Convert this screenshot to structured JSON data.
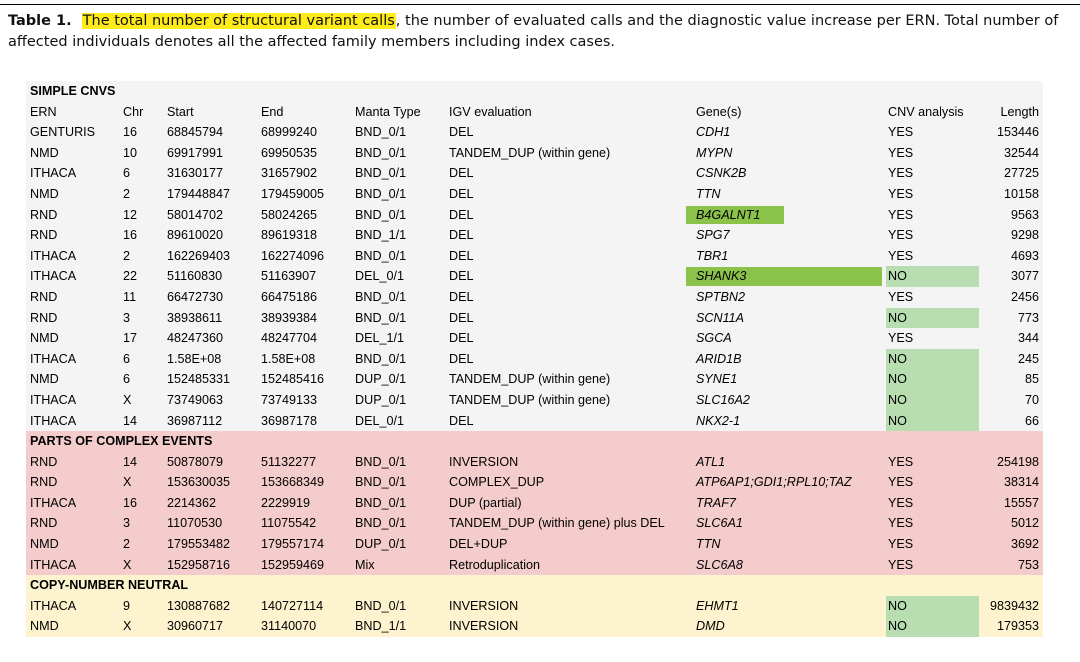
{
  "caption": {
    "label": "Table 1.",
    "highlighted": "The total number of structural variant calls",
    "rest": ", the number of evaluated calls and the diagnostic value increase per ERN. Total number of affected individuals denotes all the affected family members including index cases."
  },
  "colors": {
    "caption_highlight": "#ffeb1a",
    "simple_bg": "#f4f4f4",
    "complex_bg": "#f5cccc",
    "neutral_bg": "#fdf3cf",
    "gene_highlight_strong": "#8bc34a",
    "cnv_highlight_light": "#b7ddb0"
  },
  "table": {
    "sections": [
      {
        "title": "SIMPLE CNVS",
        "header": {
          "ern": "ERN",
          "chr": "Chr",
          "start": "Start",
          "end": "End",
          "manta": "Manta Type",
          "igv": "IGV evaluation",
          "gene": "Gene(s)",
          "cnv": "CNV analysis",
          "len": "Length"
        },
        "rows": [
          {
            "ern": "GENTURIS",
            "chr": "16",
            "start": "68845794",
            "end": "68999240",
            "manta": "BND_0/1",
            "igv": "DEL",
            "gene": "CDH1",
            "cnv": "YES",
            "len": "153446"
          },
          {
            "ern": "NMD",
            "chr": "10",
            "start": "69917991",
            "end": "69950535",
            "manta": "BND_0/1",
            "igv": "TANDEM_DUP (within gene)",
            "gene": "MYPN",
            "cnv": "YES",
            "len": "32544"
          },
          {
            "ern": "ITHACA",
            "chr": "6",
            "start": "31630177",
            "end": "31657902",
            "manta": "BND_0/1",
            "igv": "DEL",
            "gene": "CSNK2B",
            "cnv": "YES",
            "len": "27725"
          },
          {
            "ern": "NMD",
            "chr": "2",
            "start": "179448847",
            "end": "179459005",
            "manta": "BND_0/1",
            "igv": "DEL",
            "gene": "TTN",
            "cnv": "YES",
            "len": "10158"
          },
          {
            "ern": "RND",
            "chr": "12",
            "start": "58014702",
            "end": "58024265",
            "manta": "BND_0/1",
            "igv": "DEL",
            "gene": "B4GALNT1",
            "cnv": "YES",
            "len": "9563",
            "gene_hl": true
          },
          {
            "ern": "RND",
            "chr": "16",
            "start": "89610020",
            "end": "89619318",
            "manta": "BND_1/1",
            "igv": "DEL",
            "gene": "SPG7",
            "cnv": "YES",
            "len": "9298"
          },
          {
            "ern": "ITHACA",
            "chr": "2",
            "start": "162269403",
            "end": "162274096",
            "manta": "BND_0/1",
            "igv": "DEL",
            "gene": "TBR1",
            "cnv": "YES",
            "len": "4693"
          },
          {
            "ern": "ITHACA",
            "chr": "22",
            "start": "51160830",
            "end": "51163907",
            "manta": "DEL_0/1",
            "igv": "DEL",
            "gene": "SHANK3",
            "cnv": "NO",
            "len": "3077",
            "gene_hl": true,
            "cnv_hl": true
          },
          {
            "ern": "RND",
            "chr": "11",
            "start": "66472730",
            "end": "66475186",
            "manta": "BND_0/1",
            "igv": "DEL",
            "gene": "SPTBN2",
            "cnv": "YES",
            "len": "2456"
          },
          {
            "ern": "RND",
            "chr": "3",
            "start": "38938611",
            "end": "38939384",
            "manta": "BND_0/1",
            "igv": "DEL",
            "gene": "SCN11A",
            "cnv": "NO",
            "len": "773",
            "cnv_hl": true
          },
          {
            "ern": "NMD",
            "chr": "17",
            "start": "48247360",
            "end": "48247704",
            "manta": "DEL_1/1",
            "igv": "DEL",
            "gene": "SGCA",
            "cnv": "YES",
            "len": "344"
          },
          {
            "ern": "ITHACA",
            "chr": "6",
            "start": "1.58E+08",
            "end": "1.58E+08",
            "manta": "BND_0/1",
            "igv": "DEL",
            "gene": "ARID1B",
            "cnv": "NO",
            "len": "245",
            "cnv_hl": true
          },
          {
            "ern": "NMD",
            "chr": "6",
            "start": "152485331",
            "end": "152485416",
            "manta": "DUP_0/1",
            "igv": "TANDEM_DUP (within gene)",
            "gene": "SYNE1",
            "cnv": "NO",
            "len": "85",
            "cnv_hl": true
          },
          {
            "ern": "ITHACA",
            "chr": "X",
            "start": "73749063",
            "end": "73749133",
            "manta": "DUP_0/1",
            "igv": "TANDEM_DUP (within gene)",
            "gene": "SLC16A2",
            "cnv": "NO",
            "len": "70",
            "cnv_hl": true
          },
          {
            "ern": "ITHACA",
            "chr": "14",
            "start": "36987112",
            "end": "36987178",
            "manta": "DEL_0/1",
            "igv": "DEL",
            "gene": "NKX2-1",
            "cnv": "NO",
            "len": "66",
            "cnv_hl": true
          }
        ]
      },
      {
        "title": "PARTS OF COMPLEX EVENTS",
        "rows": [
          {
            "ern": "RND",
            "chr": "14",
            "start": "50878079",
            "end": "51132277",
            "manta": "BND_0/1",
            "igv": "INVERSION",
            "gene": "ATL1",
            "cnv": "YES",
            "len": "254198"
          },
          {
            "ern": "RND",
            "chr": "X",
            "start": "153630035",
            "end": "153668349",
            "manta": "BND_0/1",
            "igv": "COMPLEX_DUP",
            "gene": "ATP6AP1;GDI1;RPL10;TAZ",
            "cnv": "YES",
            "len": "38314"
          },
          {
            "ern": "ITHACA",
            "chr": "16",
            "start": "2214362",
            "end": "2229919",
            "manta": "BND_0/1",
            "igv": "DUP (partial)",
            "gene": "TRAF7",
            "cnv": "YES",
            "len": "15557"
          },
          {
            "ern": "RND",
            "chr": "3",
            "start": "11070530",
            "end": "11075542",
            "manta": "BND_0/1",
            "igv": "TANDEM_DUP (within gene) plus DEL",
            "gene": "SLC6A1",
            "cnv": "YES",
            "len": "5012"
          },
          {
            "ern": "NMD",
            "chr": "2",
            "start": "179553482",
            "end": "179557174",
            "manta": "DUP_0/1",
            "igv": "DEL+DUP",
            "gene": "TTN",
            "cnv": "YES",
            "len": "3692"
          },
          {
            "ern": "ITHACA",
            "chr": "X",
            "start": "152958716",
            "end": "152959469",
            "manta": "Mix",
            "igv": "Retroduplication",
            "gene": "SLC6A8",
            "cnv": "YES",
            "len": "753"
          }
        ]
      },
      {
        "title": "COPY-NUMBER NEUTRAL",
        "rows": [
          {
            "ern": "ITHACA",
            "chr": "9",
            "start": "130887682",
            "end": "140727114",
            "manta": "BND_0/1",
            "igv": "INVERSION",
            "gene": "EHMT1",
            "cnv": "NO",
            "len": "9839432",
            "cnv_hl": true
          },
          {
            "ern": "NMD",
            "chr": "X",
            "start": "30960717",
            "end": "31140070",
            "manta": "BND_1/1",
            "igv": "INVERSION",
            "gene": "DMD",
            "cnv": "NO",
            "len": "179353",
            "cnv_hl": true
          }
        ]
      }
    ]
  }
}
